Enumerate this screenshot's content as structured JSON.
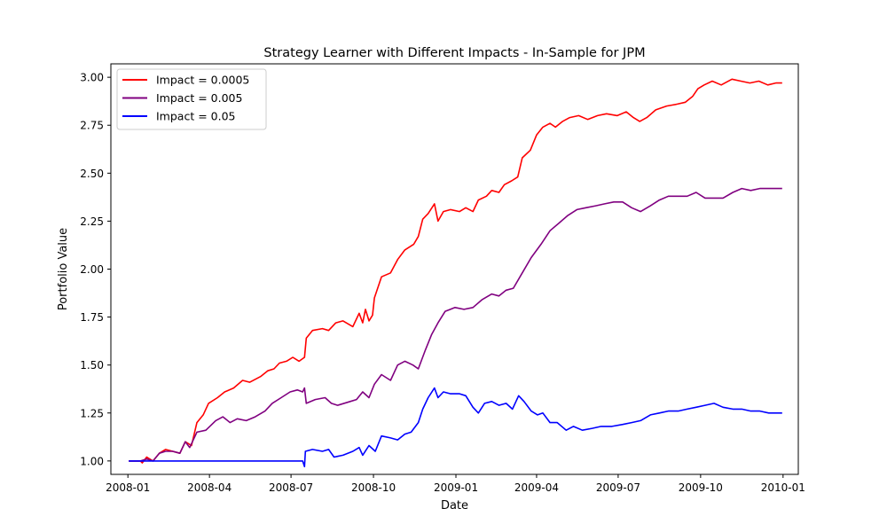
{
  "chart_data": {
    "type": "line",
    "title": "Strategy Learner with Different Impacts - In-Sample for JPM",
    "xlabel": "Date",
    "ylabel": "Portfolio Value",
    "xlim": [
      "2007-12-13",
      "2010-01-18"
    ],
    "ylim": [
      0.93,
      3.07
    ],
    "x_ticks": [
      {
        "date": "2008-01-01",
        "label": "2008-01"
      },
      {
        "date": "2008-04-01",
        "label": "2008-04"
      },
      {
        "date": "2008-07-01",
        "label": "2008-07"
      },
      {
        "date": "2008-10-01",
        "label": "2008-10"
      },
      {
        "date": "2009-01-01",
        "label": "2009-01"
      },
      {
        "date": "2009-04-01",
        "label": "2009-04"
      },
      {
        "date": "2009-07-01",
        "label": "2009-07"
      },
      {
        "date": "2009-10-01",
        "label": "2009-10"
      },
      {
        "date": "2010-01-01",
        "label": "2010-01"
      }
    ],
    "y_ticks": [
      {
        "value": 1.0,
        "label": "1.00"
      },
      {
        "value": 1.25,
        "label": "1.25"
      },
      {
        "value": 1.5,
        "label": "1.50"
      },
      {
        "value": 1.75,
        "label": "1.75"
      },
      {
        "value": 2.0,
        "label": "2.00"
      },
      {
        "value": 2.25,
        "label": "2.25"
      },
      {
        "value": 2.5,
        "label": "2.50"
      },
      {
        "value": 2.75,
        "label": "2.75"
      },
      {
        "value": 3.0,
        "label": "3.00"
      }
    ],
    "grid": false,
    "legend_position": "top-left",
    "series": [
      {
        "name": "Impact = 0.0005",
        "color": "#ff0000",
        "points": [
          [
            "2008-01-02",
            1.0
          ],
          [
            "2008-01-15",
            1.0
          ],
          [
            "2008-01-17",
            0.99
          ],
          [
            "2008-01-22",
            1.02
          ],
          [
            "2008-01-29",
            1.0
          ],
          [
            "2008-02-05",
            1.04
          ],
          [
            "2008-02-12",
            1.06
          ],
          [
            "2008-02-20",
            1.05
          ],
          [
            "2008-02-28",
            1.04
          ],
          [
            "2008-03-05",
            1.1
          ],
          [
            "2008-03-12",
            1.08
          ],
          [
            "2008-03-18",
            1.2
          ],
          [
            "2008-03-25",
            1.24
          ],
          [
            "2008-03-31",
            1.3
          ],
          [
            "2008-04-10",
            1.33
          ],
          [
            "2008-04-18",
            1.36
          ],
          [
            "2008-04-28",
            1.38
          ],
          [
            "2008-05-08",
            1.42
          ],
          [
            "2008-05-16",
            1.41
          ],
          [
            "2008-05-28",
            1.44
          ],
          [
            "2008-06-05",
            1.47
          ],
          [
            "2008-06-12",
            1.48
          ],
          [
            "2008-06-18",
            1.51
          ],
          [
            "2008-06-26",
            1.52
          ],
          [
            "2008-07-03",
            1.54
          ],
          [
            "2008-07-10",
            1.52
          ],
          [
            "2008-07-16",
            1.54
          ],
          [
            "2008-07-18",
            1.64
          ],
          [
            "2008-07-25",
            1.68
          ],
          [
            "2008-08-05",
            1.69
          ],
          [
            "2008-08-12",
            1.68
          ],
          [
            "2008-08-20",
            1.72
          ],
          [
            "2008-08-28",
            1.73
          ],
          [
            "2008-09-08",
            1.7
          ],
          [
            "2008-09-15",
            1.77
          ],
          [
            "2008-09-19",
            1.72
          ],
          [
            "2008-09-22",
            1.79
          ],
          [
            "2008-09-26",
            1.73
          ],
          [
            "2008-09-30",
            1.76
          ],
          [
            "2008-10-02",
            1.85
          ],
          [
            "2008-10-10",
            1.96
          ],
          [
            "2008-10-20",
            1.98
          ],
          [
            "2008-10-28",
            2.05
          ],
          [
            "2008-11-05",
            2.1
          ],
          [
            "2008-11-15",
            2.13
          ],
          [
            "2008-11-20",
            2.17
          ],
          [
            "2008-11-25",
            2.26
          ],
          [
            "2008-12-01",
            2.29
          ],
          [
            "2008-12-08",
            2.34
          ],
          [
            "2008-12-12",
            2.25
          ],
          [
            "2008-12-18",
            2.3
          ],
          [
            "2008-12-26",
            2.31
          ],
          [
            "2009-01-05",
            2.3
          ],
          [
            "2009-01-12",
            2.32
          ],
          [
            "2009-01-20",
            2.3
          ],
          [
            "2009-01-26",
            2.36
          ],
          [
            "2009-02-04",
            2.38
          ],
          [
            "2009-02-10",
            2.41
          ],
          [
            "2009-02-18",
            2.4
          ],
          [
            "2009-02-24",
            2.44
          ],
          [
            "2009-03-04",
            2.46
          ],
          [
            "2009-03-11",
            2.48
          ],
          [
            "2009-03-16",
            2.58
          ],
          [
            "2009-03-25",
            2.62
          ],
          [
            "2009-04-01",
            2.7
          ],
          [
            "2009-04-08",
            2.74
          ],
          [
            "2009-04-16",
            2.76
          ],
          [
            "2009-04-22",
            2.74
          ],
          [
            "2009-04-30",
            2.77
          ],
          [
            "2009-05-08",
            2.79
          ],
          [
            "2009-05-18",
            2.8
          ],
          [
            "2009-05-28",
            2.78
          ],
          [
            "2009-06-08",
            2.8
          ],
          [
            "2009-06-18",
            2.81
          ],
          [
            "2009-06-30",
            2.8
          ],
          [
            "2009-07-10",
            2.82
          ],
          [
            "2009-07-18",
            2.79
          ],
          [
            "2009-07-25",
            2.77
          ],
          [
            "2009-08-02",
            2.79
          ],
          [
            "2009-08-12",
            2.83
          ],
          [
            "2009-08-24",
            2.85
          ],
          [
            "2009-09-05",
            2.86
          ],
          [
            "2009-09-14",
            2.87
          ],
          [
            "2009-09-22",
            2.9
          ],
          [
            "2009-09-28",
            2.94
          ],
          [
            "2009-10-05",
            2.96
          ],
          [
            "2009-10-14",
            2.98
          ],
          [
            "2009-10-24",
            2.96
          ],
          [
            "2009-11-05",
            2.99
          ],
          [
            "2009-11-15",
            2.98
          ],
          [
            "2009-11-25",
            2.97
          ],
          [
            "2009-12-05",
            2.98
          ],
          [
            "2009-12-15",
            2.96
          ],
          [
            "2009-12-24",
            2.97
          ],
          [
            "2009-12-31",
            2.97
          ]
        ]
      },
      {
        "name": "Impact = 0.005",
        "color": "#800080",
        "points": [
          [
            "2008-01-02",
            1.0
          ],
          [
            "2008-01-15",
            1.0
          ],
          [
            "2008-01-22",
            1.01
          ],
          [
            "2008-01-29",
            1.0
          ],
          [
            "2008-02-05",
            1.04
          ],
          [
            "2008-02-12",
            1.05
          ],
          [
            "2008-02-20",
            1.05
          ],
          [
            "2008-02-28",
            1.04
          ],
          [
            "2008-03-05",
            1.1
          ],
          [
            "2008-03-10",
            1.07
          ],
          [
            "2008-03-18",
            1.15
          ],
          [
            "2008-03-28",
            1.16
          ],
          [
            "2008-04-08",
            1.21
          ],
          [
            "2008-04-16",
            1.23
          ],
          [
            "2008-04-24",
            1.2
          ],
          [
            "2008-05-02",
            1.22
          ],
          [
            "2008-05-12",
            1.21
          ],
          [
            "2008-05-22",
            1.23
          ],
          [
            "2008-06-02",
            1.26
          ],
          [
            "2008-06-10",
            1.3
          ],
          [
            "2008-06-20",
            1.33
          ],
          [
            "2008-06-30",
            1.36
          ],
          [
            "2008-07-08",
            1.37
          ],
          [
            "2008-07-14",
            1.36
          ],
          [
            "2008-07-16",
            1.38
          ],
          [
            "2008-07-18",
            1.3
          ],
          [
            "2008-07-28",
            1.32
          ],
          [
            "2008-08-08",
            1.33
          ],
          [
            "2008-08-15",
            1.3
          ],
          [
            "2008-08-22",
            1.29
          ],
          [
            "2008-09-05",
            1.31
          ],
          [
            "2008-09-12",
            1.32
          ],
          [
            "2008-09-19",
            1.36
          ],
          [
            "2008-09-26",
            1.33
          ],
          [
            "2008-10-02",
            1.4
          ],
          [
            "2008-10-10",
            1.45
          ],
          [
            "2008-10-20",
            1.42
          ],
          [
            "2008-10-28",
            1.5
          ],
          [
            "2008-11-05",
            1.52
          ],
          [
            "2008-11-14",
            1.5
          ],
          [
            "2008-11-20",
            1.48
          ],
          [
            "2008-11-28",
            1.58
          ],
          [
            "2008-12-05",
            1.66
          ],
          [
            "2008-12-12",
            1.72
          ],
          [
            "2008-12-20",
            1.78
          ],
          [
            "2008-12-31",
            1.8
          ],
          [
            "2009-01-10",
            1.79
          ],
          [
            "2009-01-20",
            1.8
          ],
          [
            "2009-01-30",
            1.84
          ],
          [
            "2009-02-10",
            1.87
          ],
          [
            "2009-02-18",
            1.86
          ],
          [
            "2009-02-26",
            1.89
          ],
          [
            "2009-03-06",
            1.9
          ],
          [
            "2009-03-16",
            1.98
          ],
          [
            "2009-03-26",
            2.06
          ],
          [
            "2009-04-06",
            2.13
          ],
          [
            "2009-04-16",
            2.2
          ],
          [
            "2009-04-26",
            2.24
          ],
          [
            "2009-05-06",
            2.28
          ],
          [
            "2009-05-16",
            2.31
          ],
          [
            "2009-05-26",
            2.32
          ],
          [
            "2009-06-06",
            2.33
          ],
          [
            "2009-06-16",
            2.34
          ],
          [
            "2009-06-26",
            2.35
          ],
          [
            "2009-07-06",
            2.35
          ],
          [
            "2009-07-16",
            2.32
          ],
          [
            "2009-07-26",
            2.3
          ],
          [
            "2009-08-06",
            2.33
          ],
          [
            "2009-08-16",
            2.36
          ],
          [
            "2009-08-26",
            2.38
          ],
          [
            "2009-09-06",
            2.38
          ],
          [
            "2009-09-16",
            2.38
          ],
          [
            "2009-09-26",
            2.4
          ],
          [
            "2009-10-06",
            2.37
          ],
          [
            "2009-10-16",
            2.37
          ],
          [
            "2009-10-26",
            2.37
          ],
          [
            "2009-11-06",
            2.4
          ],
          [
            "2009-11-16",
            2.42
          ],
          [
            "2009-11-26",
            2.41
          ],
          [
            "2009-12-06",
            2.42
          ],
          [
            "2009-12-16",
            2.42
          ],
          [
            "2009-12-31",
            2.42
          ]
        ]
      },
      {
        "name": "Impact = 0.05",
        "color": "#0000ff",
        "points": [
          [
            "2008-01-02",
            1.0
          ],
          [
            "2008-07-10",
            1.0
          ],
          [
            "2008-07-14",
            1.0
          ],
          [
            "2008-07-16",
            0.97
          ],
          [
            "2008-07-17",
            1.05
          ],
          [
            "2008-07-25",
            1.06
          ],
          [
            "2008-08-05",
            1.05
          ],
          [
            "2008-08-12",
            1.06
          ],
          [
            "2008-08-18",
            1.02
          ],
          [
            "2008-08-28",
            1.03
          ],
          [
            "2008-09-08",
            1.05
          ],
          [
            "2008-09-15",
            1.07
          ],
          [
            "2008-09-19",
            1.03
          ],
          [
            "2008-09-26",
            1.08
          ],
          [
            "2008-10-03",
            1.05
          ],
          [
            "2008-10-10",
            1.13
          ],
          [
            "2008-10-20",
            1.12
          ],
          [
            "2008-10-28",
            1.11
          ],
          [
            "2008-11-05",
            1.14
          ],
          [
            "2008-11-12",
            1.15
          ],
          [
            "2008-11-20",
            1.2
          ],
          [
            "2008-11-25",
            1.27
          ],
          [
            "2008-12-01",
            1.33
          ],
          [
            "2008-12-08",
            1.38
          ],
          [
            "2008-12-12",
            1.33
          ],
          [
            "2008-12-18",
            1.36
          ],
          [
            "2008-12-26",
            1.35
          ],
          [
            "2009-01-05",
            1.35
          ],
          [
            "2009-01-12",
            1.34
          ],
          [
            "2009-01-20",
            1.28
          ],
          [
            "2009-01-26",
            1.25
          ],
          [
            "2009-02-02",
            1.3
          ],
          [
            "2009-02-10",
            1.31
          ],
          [
            "2009-02-18",
            1.29
          ],
          [
            "2009-02-26",
            1.3
          ],
          [
            "2009-03-05",
            1.27
          ],
          [
            "2009-03-12",
            1.34
          ],
          [
            "2009-03-18",
            1.31
          ],
          [
            "2009-03-26",
            1.26
          ],
          [
            "2009-04-02",
            1.24
          ],
          [
            "2009-04-08",
            1.25
          ],
          [
            "2009-04-16",
            1.2
          ],
          [
            "2009-04-24",
            1.2
          ],
          [
            "2009-05-04",
            1.16
          ],
          [
            "2009-05-12",
            1.18
          ],
          [
            "2009-05-22",
            1.16
          ],
          [
            "2009-06-02",
            1.17
          ],
          [
            "2009-06-12",
            1.18
          ],
          [
            "2009-06-24",
            1.18
          ],
          [
            "2009-07-06",
            1.19
          ],
          [
            "2009-07-16",
            1.2
          ],
          [
            "2009-07-26",
            1.21
          ],
          [
            "2009-08-06",
            1.24
          ],
          [
            "2009-08-16",
            1.25
          ],
          [
            "2009-08-26",
            1.26
          ],
          [
            "2009-09-06",
            1.26
          ],
          [
            "2009-09-16",
            1.27
          ],
          [
            "2009-09-26",
            1.28
          ],
          [
            "2009-10-06",
            1.29
          ],
          [
            "2009-10-16",
            1.3
          ],
          [
            "2009-10-26",
            1.28
          ],
          [
            "2009-11-06",
            1.27
          ],
          [
            "2009-11-16",
            1.27
          ],
          [
            "2009-11-26",
            1.26
          ],
          [
            "2009-12-06",
            1.26
          ],
          [
            "2009-12-16",
            1.25
          ],
          [
            "2009-12-24",
            1.25
          ],
          [
            "2009-12-31",
            1.25
          ]
        ]
      }
    ]
  }
}
